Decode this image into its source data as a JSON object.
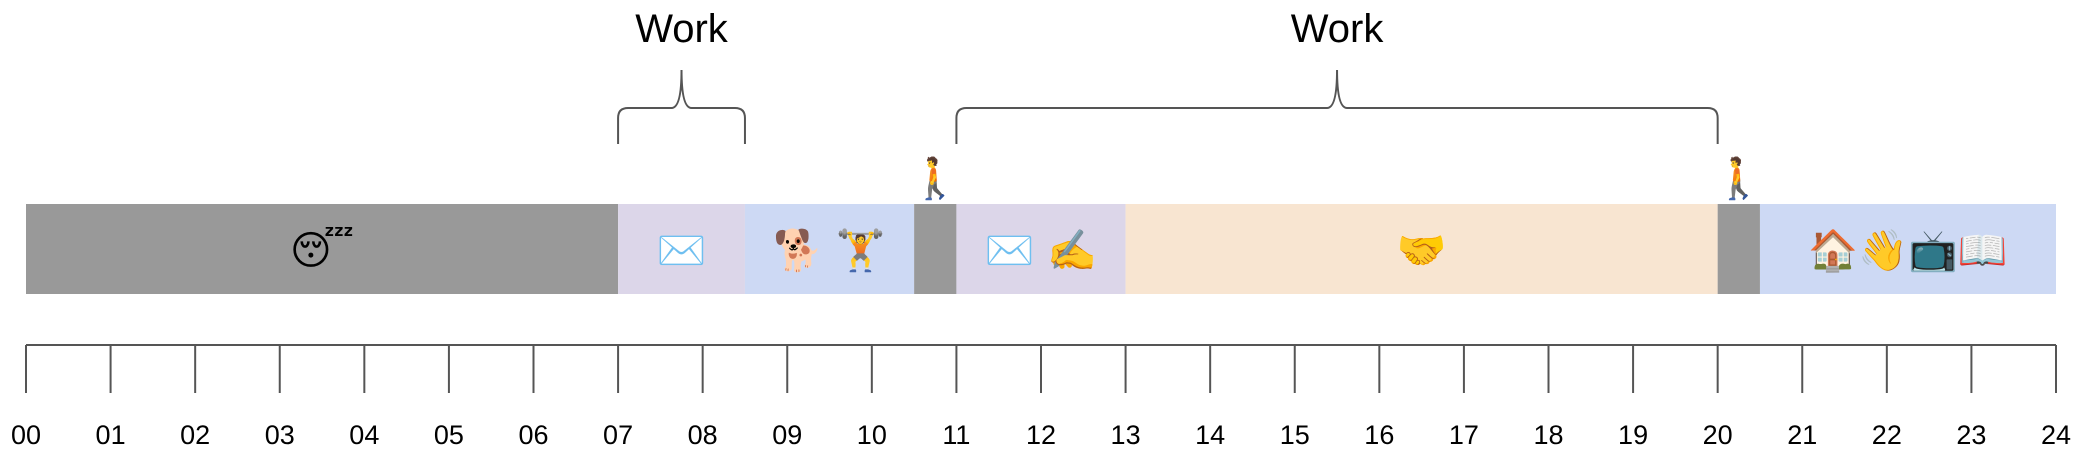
{
  "timeline": {
    "start_hour": 0,
    "end_hour": 24,
    "tick_labels": [
      "00",
      "01",
      "02",
      "03",
      "04",
      "05",
      "06",
      "07",
      "08",
      "09",
      "10",
      "11",
      "12",
      "13",
      "14",
      "15",
      "16",
      "17",
      "18",
      "19",
      "20",
      "21",
      "22",
      "23",
      "24"
    ],
    "segments": [
      {
        "name": "sleep",
        "start": 0,
        "end": 7,
        "color": "#999999",
        "icons": [
          "sleeping-face-icon"
        ],
        "glyphs": "😴"
      },
      {
        "name": "morning-email",
        "start": 7,
        "end": 8.5,
        "color": "#dcd6e9",
        "icons": [
          "envelope-icon"
        ],
        "glyphs": "✉️"
      },
      {
        "name": "dog-and-workout",
        "start": 8.5,
        "end": 10.5,
        "color": "#cdd9f4",
        "icons": [
          "dog-icon",
          "weightlifter-icon"
        ],
        "glyphs": "🐕 🏋️"
      },
      {
        "name": "commute-morning",
        "start": 10.5,
        "end": 11,
        "color": "#999999",
        "icons": [],
        "glyphs": ""
      },
      {
        "name": "email-and-writing",
        "start": 11,
        "end": 13,
        "color": "#dcd6e9",
        "icons": [
          "envelope-icon",
          "writing-hand-icon"
        ],
        "glyphs": "✉️ ✍️"
      },
      {
        "name": "meetings",
        "start": 13,
        "end": 20,
        "color": "#f8e5d1",
        "icons": [
          "handshake-icon"
        ],
        "glyphs": "🤝"
      },
      {
        "name": "commute-evening",
        "start": 20,
        "end": 20.5,
        "color": "#999999",
        "icons": [],
        "glyphs": ""
      },
      {
        "name": "home-evening",
        "start": 20.5,
        "end": 24,
        "color": "#cdd9f4",
        "icons": [
          "house-icon",
          "waving-hand-icon",
          "television-icon",
          "book-icon"
        ],
        "glyphs": "🏠👋📺📖"
      }
    ],
    "walkers": [
      {
        "hour": 10.75,
        "icon": "person-walking-icon",
        "glyph": "🚶"
      },
      {
        "hour": 20.25,
        "icon": "person-walking-icon",
        "glyph": "🚶"
      }
    ],
    "braces": [
      {
        "label": "Work",
        "start": 7,
        "end": 8.5
      },
      {
        "label": "Work",
        "start": 11,
        "end": 20
      }
    ]
  }
}
